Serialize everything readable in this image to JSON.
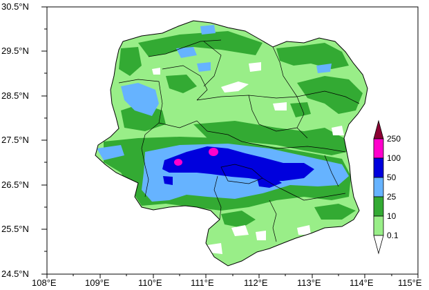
{
  "map": {
    "lat_labels": [
      "30.5°N",
      "29.5°N",
      "28.5°N",
      "27.5°N",
      "26.5°N",
      "25.5°N",
      "24.5°N"
    ],
    "lon_labels": [
      "108°E",
      "109°E",
      "110°E",
      "111°E",
      "112°E",
      "113°E",
      "114°E",
      "115°E"
    ],
    "lat_range": [
      24.5,
      30.5
    ],
    "lon_range": [
      108,
      115
    ]
  },
  "legend": {
    "levels": [
      "250",
      "100",
      "50",
      "25",
      "10",
      "0.1"
    ],
    "colors": {
      "above_250": "#8b0033",
      "100_250": "#ff00cc",
      "50_100": "#0000dd",
      "25_50": "#66b3ff",
      "10_25": "#33aa33",
      "0.1_10": "#99ee88",
      "below_0.1": "#ffffff"
    }
  }
}
